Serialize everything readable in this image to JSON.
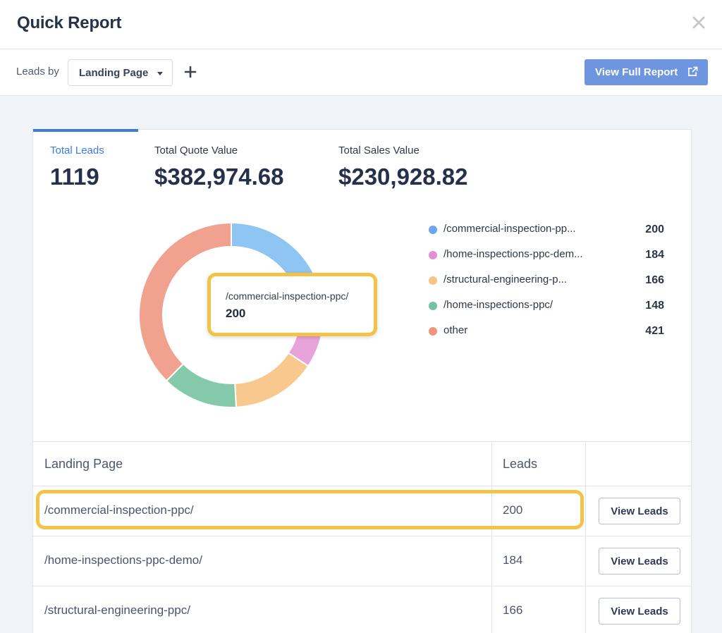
{
  "header": {
    "title": "Quick Report"
  },
  "toolbar": {
    "leads_by_label": "Leads by",
    "group_by_selected": "Landing Page",
    "view_full_report_label": "View Full Report"
  },
  "metrics": [
    {
      "label": "Total Leads",
      "value": "1119",
      "active": true
    },
    {
      "label": "Total Quote Value",
      "value": "$382,974.68",
      "active": false
    },
    {
      "label": "Total Sales Value",
      "value": "$230,928.82",
      "active": false
    }
  ],
  "chart_data": {
    "type": "pie",
    "donut": true,
    "categories": [
      "/commercial-inspection-ppc/",
      "/home-inspections-ppc-demo/",
      "/structural-engineering-ppc/",
      "/home-inspections-ppc/",
      "other"
    ],
    "values": [
      200,
      184,
      166,
      148,
      421
    ],
    "colors": [
      "#8fc5f3",
      "#e9a3db",
      "#f8c88e",
      "#85c9ab",
      "#f0a28e"
    ],
    "legend": "right"
  },
  "legend": [
    {
      "label": "/commercial-inspection-pp...",
      "value": "200",
      "color": "#6aa7ec"
    },
    {
      "label": "/home-inspections-ppc-dem...",
      "value": "184",
      "color": "#e28fd5"
    },
    {
      "label": "/structural-engineering-p...",
      "value": "166",
      "color": "#f6c389"
    },
    {
      "label": "/home-inspections-ppc/",
      "value": "148",
      "color": "#74c3a0"
    },
    {
      "label": "other",
      "value": "421",
      "color": "#ee957f"
    }
  ],
  "tooltip": {
    "name": "/commercial-inspection-ppc/",
    "value": "200"
  },
  "table": {
    "headers": [
      "Landing Page",
      "Leads"
    ],
    "rows": [
      {
        "page": "/commercial-inspection-ppc/",
        "leads": "200",
        "action": "View Leads"
      },
      {
        "page": "/home-inspections-ppc-demo/",
        "leads": "184",
        "action": "View Leads"
      },
      {
        "page": "/structural-engineering-ppc/",
        "leads": "166",
        "action": "View Leads"
      }
    ]
  },
  "highlight_color": "#f4c246",
  "accent_color": "#3f7ad8",
  "icons": [
    "close-icon",
    "caret-down-icon",
    "plus-icon",
    "external-link-icon"
  ]
}
